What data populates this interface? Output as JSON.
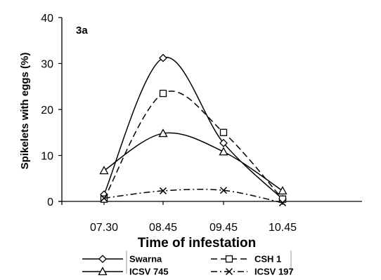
{
  "chart_data": {
    "type": "line",
    "title": "",
    "panel_label": "3a",
    "xlabel": "Time of infestation",
    "ylabel": "Spikelets with eggs (%)",
    "categories": [
      "07.30",
      "08.45",
      "09.45",
      "10.45"
    ],
    "ylim": [
      0,
      40
    ],
    "yticks": [
      0,
      10,
      20,
      30,
      40
    ],
    "grid": false,
    "smooth": true,
    "legend_position": "bottom",
    "series": [
      {
        "name": "Swarna",
        "values": [
          1.5,
          31.2,
          12.7,
          0.5
        ],
        "marker": "diamond",
        "dash": "solid"
      },
      {
        "name": "CSH 1",
        "values": [
          0.5,
          23.5,
          15.0,
          0.5
        ],
        "marker": "square",
        "dash": "dashed"
      },
      {
        "name": "ICSV 745",
        "values": [
          6.7,
          14.8,
          10.8,
          2.3
        ],
        "marker": "triangle",
        "dash": "solid"
      },
      {
        "name": "ICSV 197",
        "values": [
          0.7,
          2.3,
          2.4,
          -0.3
        ],
        "marker": "x",
        "dash": "dashdot"
      }
    ]
  }
}
